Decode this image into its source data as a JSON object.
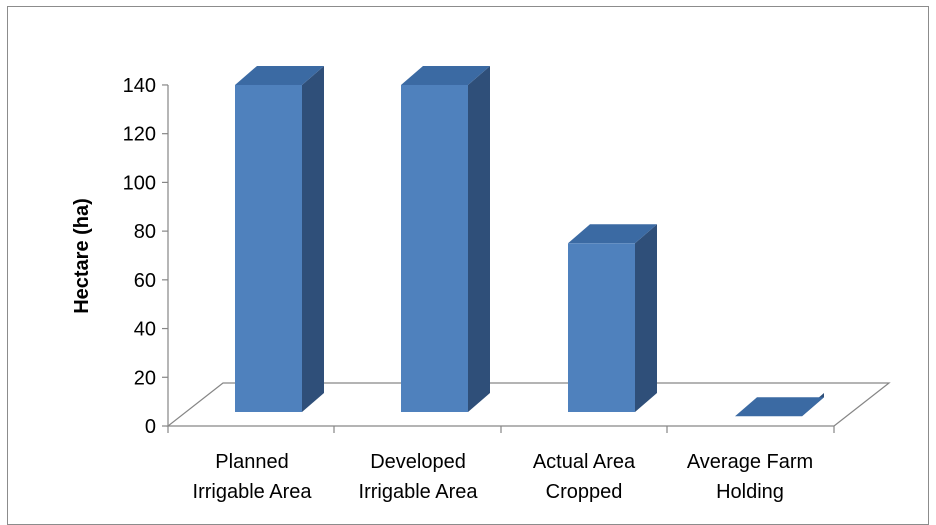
{
  "chart_data": {
    "type": "bar",
    "title": "",
    "xlabel": "",
    "ylabel": "Hectare (ha)",
    "categories": [
      [
        "Planned",
        "Irrigable Area"
      ],
      [
        "Developed",
        "Irrigable Area"
      ],
      [
        "Actual Area",
        "Cropped"
      ],
      [
        "Average Farm",
        "Holding"
      ]
    ],
    "values": [
      140,
      140,
      75,
      4
    ],
    "ylim": [
      0,
      140
    ],
    "yticks": [
      0,
      20,
      40,
      60,
      80,
      100,
      120,
      140
    ],
    "grid": false,
    "legend": "none",
    "style": "3d-column",
    "colors": {
      "front": "#4f81bd",
      "side": "#2f4f79",
      "top": "#3b6aa3",
      "axis": "#868686",
      "text": "#000000"
    }
  }
}
